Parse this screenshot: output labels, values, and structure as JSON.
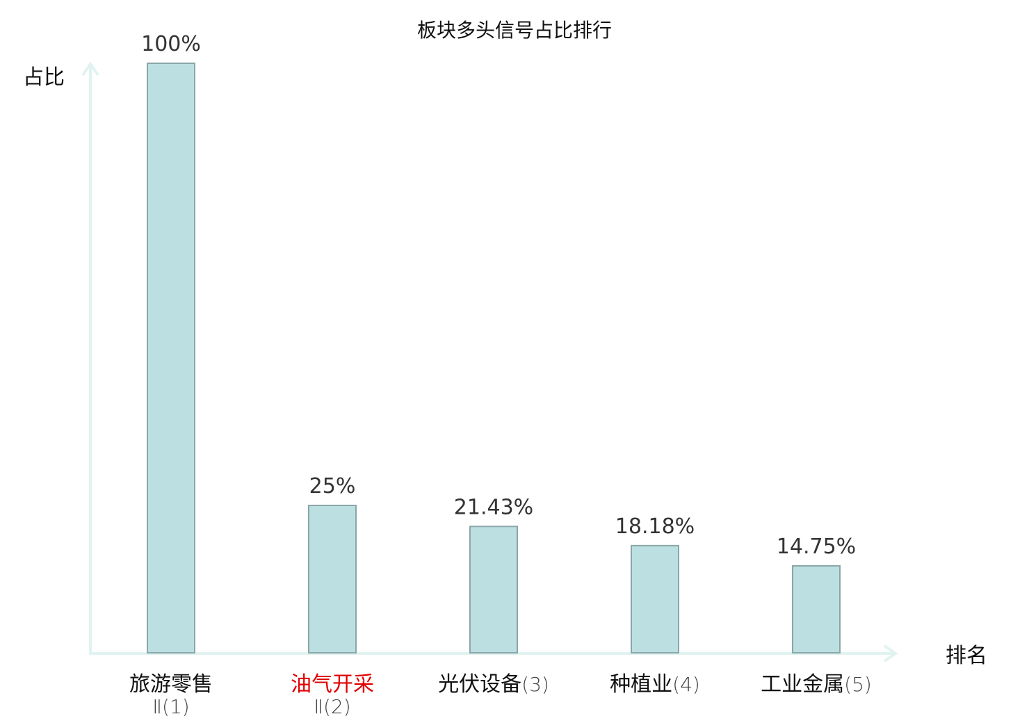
{
  "chart_data": {
    "type": "bar",
    "title": "板块多头信号占比排行",
    "ylabel": "占比",
    "xlabel": "排名",
    "ylim": [
      0,
      100
    ],
    "grid": false,
    "categories": [
      {
        "name": "旅游零售",
        "rank": "Ⅱ(1)",
        "highlight": false
      },
      {
        "name": "油气开采",
        "rank": "Ⅱ(2)",
        "highlight": true
      },
      {
        "name": "光伏设备",
        "rank": "(3)",
        "highlight": false
      },
      {
        "name": "种植业",
        "rank": "(4)",
        "highlight": false
      },
      {
        "name": "工业金属",
        "rank": "(5)",
        "highlight": false
      }
    ],
    "values": [
      100,
      25,
      21.43,
      18.18,
      14.75
    ],
    "value_labels": [
      "100%",
      "25%",
      "21.43%",
      "18.18%",
      "14.75%"
    ],
    "colors": {
      "bar_fill": "#bce0e2",
      "bar_stroke": "#8aa6a8",
      "axis": "#e0f3f1",
      "highlight_text": "#e00000",
      "text": "#111111"
    }
  }
}
